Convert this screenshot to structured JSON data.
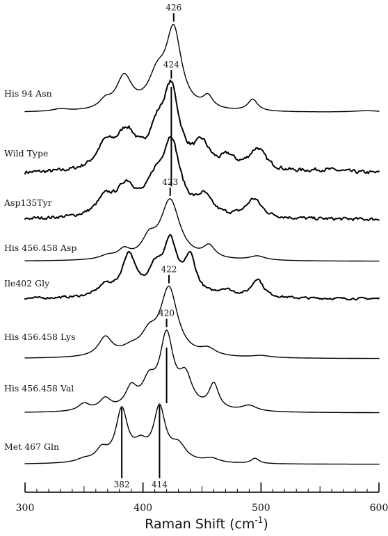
{
  "chart_data": {
    "type": "line",
    "title": "",
    "xlabel": "Raman Shift",
    "xlabel_unit_base": "(cm",
    "xlabel_unit_exp": "-1",
    "xlabel_unit_close": ")",
    "xlim": [
      300,
      600
    ],
    "x_ticks": [
      300,
      400,
      500,
      600
    ],
    "x_minor_step": 10,
    "yaxis": "none (stacked spectra, arbitrary intensity)",
    "grid": false,
    "series": [
      {
        "name": "His 94 Asn",
        "noise": 0.0,
        "peaks": [
          [
            330,
            0.03,
            8
          ],
          [
            368,
            0.1,
            6
          ],
          [
            384,
            0.42,
            8
          ],
          [
            412,
            0.38,
            9
          ],
          [
            426,
            1.0,
            8
          ],
          [
            455,
            0.15,
            5
          ],
          [
            493,
            0.15,
            5
          ],
          [
            590,
            0.02,
            15
          ]
        ]
      },
      {
        "name": "Wild Type",
        "noise": 0.045,
        "peaks": [
          [
            368,
            0.3,
            9
          ],
          [
            386,
            0.48,
            11
          ],
          [
            412,
            0.42,
            9
          ],
          [
            424,
            1.0,
            8
          ],
          [
            450,
            0.32,
            8
          ],
          [
            472,
            0.16,
            7
          ],
          [
            497,
            0.3,
            9
          ],
          [
            555,
            0.04,
            20
          ]
        ]
      },
      {
        "name": "Asp135Tyr",
        "noise": 0.04,
        "peaks": [
          [
            368,
            0.24,
            9
          ],
          [
            386,
            0.4,
            10
          ],
          [
            410,
            0.36,
            9
          ],
          [
            424,
            1.0,
            9
          ],
          [
            452,
            0.25,
            8
          ],
          [
            494,
            0.26,
            8
          ]
        ]
      },
      {
        "name": "His 456.458 Asp",
        "noise": 0.0,
        "peaks": [
          [
            370,
            0.06,
            8
          ],
          [
            384,
            0.14,
            6
          ],
          [
            405,
            0.28,
            7
          ],
          [
            423,
            1.0,
            10
          ],
          [
            456,
            0.2,
            6
          ],
          [
            497,
            0.07,
            8
          ]
        ]
      },
      {
        "name": "Ile402 Gly",
        "noise": 0.03,
        "peaks": [
          [
            368,
            0.16,
            8
          ],
          [
            388,
            0.62,
            7
          ],
          [
            410,
            0.35,
            7
          ],
          [
            423,
            0.78,
            7
          ],
          [
            440,
            0.55,
            6
          ],
          [
            470,
            0.1,
            8
          ],
          [
            497,
            0.28,
            6
          ]
        ]
      },
      {
        "name": "His 456.458 Lys",
        "noise": 0.0,
        "peaks": [
          [
            368,
            0.28,
            7
          ],
          [
            390,
            0.1,
            10
          ],
          [
            405,
            0.26,
            8
          ],
          [
            422,
            1.0,
            9
          ],
          [
            455,
            0.1,
            8
          ],
          [
            500,
            0.03,
            10
          ]
        ]
      },
      {
        "name": "His 456.458 Val",
        "noise": 0.0,
        "peaks": [
          [
            350,
            0.1,
            6
          ],
          [
            368,
            0.16,
            6
          ],
          [
            390,
            0.28,
            6
          ],
          [
            405,
            0.34,
            7
          ],
          [
            420,
            1.0,
            7
          ],
          [
            436,
            0.42,
            7
          ],
          [
            460,
            0.35,
            5
          ],
          [
            490,
            0.08,
            8
          ]
        ]
      },
      {
        "name": "Met 467 Gln",
        "noise": 0.0,
        "peaks": [
          [
            350,
            0.06,
            8
          ],
          [
            365,
            0.22,
            6
          ],
          [
            382,
            0.98,
            6
          ],
          [
            398,
            0.28,
            7
          ],
          [
            414,
            1.0,
            6
          ],
          [
            430,
            0.3,
            8
          ],
          [
            458,
            0.08,
            8
          ],
          [
            495,
            0.1,
            4
          ]
        ]
      }
    ],
    "annotations": [
      {
        "label": "426",
        "x": 426,
        "series": "His 94 Asn"
      },
      {
        "label": "424",
        "x": 424,
        "series": "Wild Type"
      },
      {
        "label": "423",
        "x": 423,
        "series": "His 456.458 Asp"
      },
      {
        "label": "422",
        "x": 422,
        "series": "His 456.458 Lys"
      },
      {
        "label": "420",
        "x": 420,
        "series": "His 456.458 Val"
      },
      {
        "label": "382",
        "x": 382,
        "series": "Met 467 Gln"
      },
      {
        "label": "414",
        "x": 414,
        "series": "Met 467 Gln"
      }
    ]
  }
}
